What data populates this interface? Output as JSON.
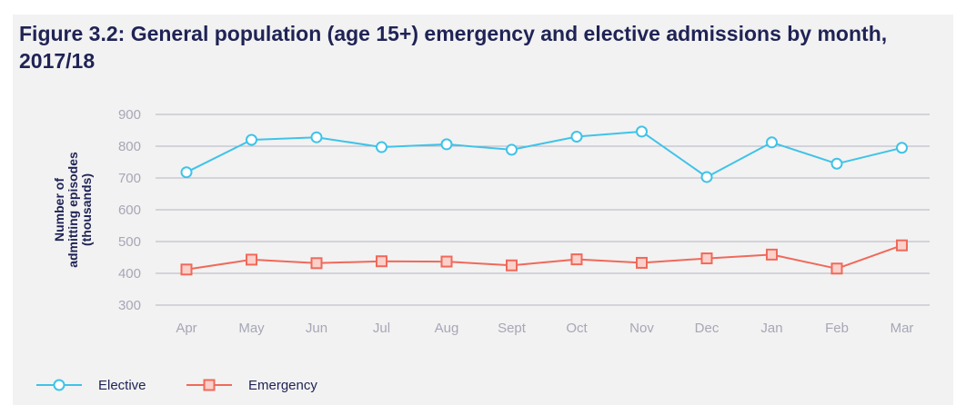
{
  "chart_data": {
    "type": "line",
    "title": "Figure 3.2: General population (age 15+) emergency and elective admissions by month, 2017/18",
    "ylabel_lines": [
      "Number of",
      "admitting episodes",
      "(thousands)"
    ],
    "xlabel": "",
    "categories": [
      "Apr",
      "May",
      "Jun",
      "Jul",
      "Aug",
      "Sept",
      "Oct",
      "Nov",
      "Dec",
      "Jan",
      "Feb",
      "Mar"
    ],
    "ylim": [
      300,
      900
    ],
    "yticks": [
      300,
      400,
      500,
      600,
      700,
      800,
      900
    ],
    "grid": true,
    "legend_position": "bottom-left",
    "series": [
      {
        "name": "Elective",
        "marker": "circle",
        "color": "#3fc3e8",
        "values": [
          718,
          820,
          828,
          797,
          806,
          789,
          830,
          846,
          703,
          812,
          745,
          795
        ]
      },
      {
        "name": "Emergency",
        "marker": "square",
        "color": "#f0695a",
        "values": [
          412,
          443,
          432,
          438,
          437,
          425,
          444,
          433,
          447,
          459,
          415,
          488
        ]
      }
    ]
  },
  "colors": {
    "panel_background": "#f2f2f2",
    "title": "#1f2355",
    "grid": "#b4b4c2",
    "tick_text": "#a7a7b7"
  }
}
